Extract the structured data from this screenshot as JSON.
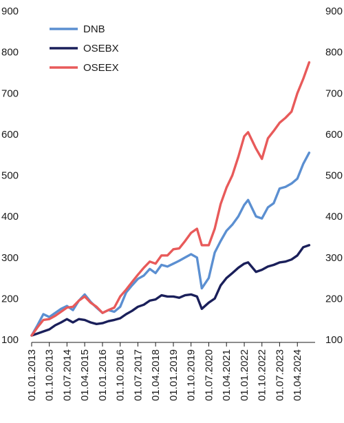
{
  "chart_data": {
    "type": "line",
    "title": "",
    "xlabel": "",
    "ylabel": "",
    "ylim": [
      100,
      900
    ],
    "yticks": [
      100,
      200,
      300,
      400,
      500,
      600,
      700,
      800,
      900
    ],
    "ytick_labels": [
      "100",
      "200",
      "300",
      "400",
      "500",
      "600",
      "700",
      "800",
      "900"
    ],
    "xlim": [
      "2013-01-01",
      "2024-12-31"
    ],
    "xticks": [
      "2013-01-01",
      "2013-10-01",
      "2014-07-01",
      "2015-04-01",
      "2016-01-01",
      "2016-10-01",
      "2017-07-01",
      "2018-04-01",
      "2019-01-01",
      "2019-10-01",
      "2020-07-01",
      "2021-04-01",
      "2022-01-01",
      "2022-10-01",
      "2023-07-01",
      "2024-04-01"
    ],
    "xtick_labels": [
      "01.01.2013",
      "01.10.2013",
      "01.07.2014",
      "01.04.2015",
      "01.01.2016",
      "01.10.2016",
      "01.07.2017",
      "01.04.2018",
      "01.01.2019",
      "01.10.2019",
      "01.07.2020",
      "01.04.2021",
      "01.01.2022",
      "01.10.2022",
      "01.07.2023",
      "01.04.2024"
    ],
    "grid": false,
    "legend_position": "top-left",
    "x": [
      "2013-01-01",
      "2013-04-01",
      "2013-07-01",
      "2013-10-01",
      "2014-01-01",
      "2014-04-01",
      "2014-07-01",
      "2014-10-01",
      "2015-01-01",
      "2015-04-01",
      "2015-07-01",
      "2015-10-01",
      "2016-01-01",
      "2016-04-01",
      "2016-07-01",
      "2016-10-01",
      "2017-01-01",
      "2017-04-01",
      "2017-07-01",
      "2017-10-01",
      "2018-01-01",
      "2018-04-01",
      "2018-07-01",
      "2018-10-01",
      "2019-01-01",
      "2019-04-01",
      "2019-07-01",
      "2019-10-01",
      "2020-01-01",
      "2020-03-15",
      "2020-07-01",
      "2020-10-01",
      "2021-01-01",
      "2021-04-01",
      "2021-07-01",
      "2021-10-01",
      "2022-01-01",
      "2022-03-01",
      "2022-07-01",
      "2022-10-01",
      "2023-01-01",
      "2023-04-01",
      "2023-07-01",
      "2023-10-01",
      "2024-01-01",
      "2024-04-01",
      "2024-07-01",
      "2024-10-01"
    ],
    "series": [
      {
        "name": "DNB",
        "color": "#5b8fd1",
        "values": [
          110,
          135,
          162,
          155,
          165,
          175,
          182,
          172,
          195,
          210,
          192,
          178,
          165,
          172,
          168,
          180,
          215,
          232,
          248,
          256,
          272,
          262,
          282,
          278,
          285,
          292,
          300,
          308,
          300,
          225,
          250,
          312,
          340,
          365,
          380,
          400,
          428,
          440,
          400,
          395,
          422,
          432,
          468,
          472,
          480,
          492,
          528,
          555
        ]
      },
      {
        "name": "OSEBX",
        "color": "#1a1f5a",
        "values": [
          110,
          115,
          120,
          125,
          135,
          142,
          150,
          142,
          150,
          148,
          142,
          138,
          140,
          145,
          148,
          152,
          162,
          170,
          180,
          185,
          195,
          198,
          208,
          205,
          205,
          202,
          208,
          210,
          205,
          175,
          190,
          200,
          232,
          250,
          262,
          275,
          285,
          288,
          265,
          270,
          278,
          282,
          288,
          290,
          295,
          305,
          325,
          330
        ]
      },
      {
        "name": "OSEEX",
        "color": "#e85a5a",
        "values": [
          110,
          130,
          148,
          150,
          158,
          168,
          178,
          180,
          195,
          205,
          190,
          180,
          165,
          172,
          178,
          205,
          222,
          240,
          258,
          275,
          290,
          285,
          305,
          305,
          320,
          322,
          340,
          360,
          370,
          330,
          330,
          370,
          430,
          470,
          500,
          545,
          595,
          605,
          565,
          540,
          590,
          608,
          628,
          640,
          655,
          700,
          735,
          775
        ]
      }
    ]
  }
}
